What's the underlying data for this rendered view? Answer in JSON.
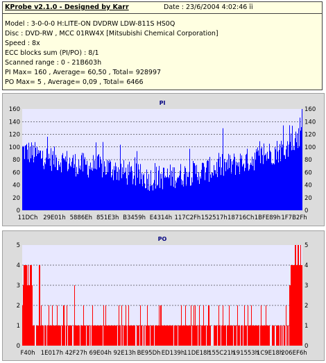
{
  "header": {
    "title": "KProbe v2.1.0 - Designed by Karr",
    "date": "Date : 23/6/2004 4:02:46 ïi",
    "lines": [
      "Model : 3-0-0-0 H:LITE-ON DVDRW LDW-811S   HS0Q",
      "Disc : DVD-RW , MCC 01RW4X  [Mitsubishi Chemical Corporation]",
      "Speed : 8x",
      "ECC blocks sum (PI/PO) : 8/1",
      "Scanned range : 0 - 21B603h",
      "PI Max= 160 , Average= 60,50 , Total= 928997",
      "PO Max= 5 , Average= 0,09 , Total= 6466"
    ]
  },
  "chart_data": [
    {
      "type": "bar",
      "title": "PI",
      "ylim": [
        0,
        160
      ],
      "yticks": [
        0,
        20,
        40,
        60,
        80,
        100,
        120,
        140,
        160
      ],
      "x_tick_labels": [
        "11DCh",
        "29E01h",
        "5886Eh",
        "851E3h",
        "B3459h",
        "E4314h",
        "117C2Fh",
        "152517h",
        "18716Ch",
        "1BFE89h",
        "1F7B2Fh"
      ],
      "grid": true,
      "color": "#0000ff",
      "background": "#e8e8ff",
      "profile_x": [
        0,
        0.05,
        0.1,
        0.15,
        0.2,
        0.25,
        0.3,
        0.35,
        0.4,
        0.45,
        0.5,
        0.55,
        0.6,
        0.65,
        0.7,
        0.75,
        0.8,
        0.85,
        0.9,
        0.95,
        1.0
      ],
      "profile_y": [
        95,
        88,
        82,
        78,
        72,
        70,
        68,
        62,
        55,
        50,
        52,
        55,
        58,
        62,
        68,
        72,
        78,
        85,
        92,
        100,
        115
      ],
      "max": 160,
      "average": 60.5
    },
    {
      "type": "bar",
      "title": "PO",
      "ylim": [
        0,
        5
      ],
      "yticks": [
        0,
        1,
        2,
        3,
        4,
        5
      ],
      "x_tick_labels": [
        "F40h",
        "1E017h",
        "42F27h",
        "69E04h",
        "92E13h",
        "BE95Dh",
        "ED139h",
        "11DE18h",
        "155C21h",
        "191553h",
        "1C9E18h",
        "206EF6h"
      ],
      "grid": true,
      "color": "#ff0000",
      "background": "#e8e8ff",
      "max": 5,
      "average": 0.09
    }
  ]
}
